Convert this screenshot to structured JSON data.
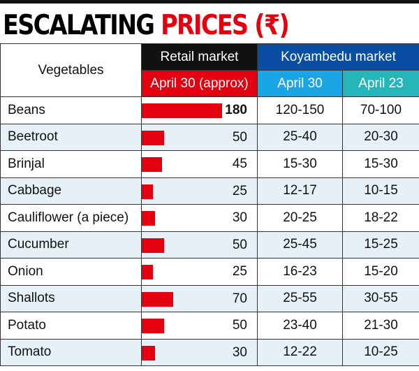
{
  "title": {
    "part1": "ESCALATING",
    "part2": "PRICES (₹)"
  },
  "colors": {
    "accent_red": "#e3000f",
    "koyambedu_blue": "#0a4ea3",
    "april30_blue": "#1aa6e6",
    "april23_teal": "#24b6b8",
    "alt_row": "#e6f1f7"
  },
  "chart_data": {
    "type": "table",
    "headers": {
      "vegetables": "Vegetables",
      "retail_market": "Retail market",
      "koyambedu_market": "Koyambedu market",
      "retail_date": "April 30 (approx)",
      "koyambedu_date1": "April 30",
      "koyambedu_date2": "April 23"
    },
    "rows": [
      {
        "name": "Beans",
        "retail": 180,
        "k_apr30": "120-150",
        "k_apr23": "70-100"
      },
      {
        "name": "Beetroot",
        "retail": 50,
        "k_apr30": "25-40",
        "k_apr23": "20-30"
      },
      {
        "name": "Brinjal",
        "retail": 45,
        "k_apr30": "15-30",
        "k_apr23": "15-30"
      },
      {
        "name": "Cabbage",
        "retail": 25,
        "k_apr30": "12-17",
        "k_apr23": "10-15"
      },
      {
        "name": "Cauliflower (a piece)",
        "retail": 30,
        "k_apr30": "20-25",
        "k_apr23": "18-22"
      },
      {
        "name": "Cucumber",
        "retail": 50,
        "k_apr30": "25-45",
        "k_apr23": "15-25"
      },
      {
        "name": "Onion",
        "retail": 25,
        "k_apr30": "16-23",
        "k_apr23": "15-20"
      },
      {
        "name": "Shallots",
        "retail": 70,
        "k_apr30": "25-55",
        "k_apr23": "30-55"
      },
      {
        "name": "Potato",
        "retail": 50,
        "k_apr30": "23-40",
        "k_apr23": "21-30"
      },
      {
        "name": "Tomato",
        "retail": 30,
        "k_apr30": "12-22",
        "k_apr23": "10-25"
      }
    ]
  }
}
